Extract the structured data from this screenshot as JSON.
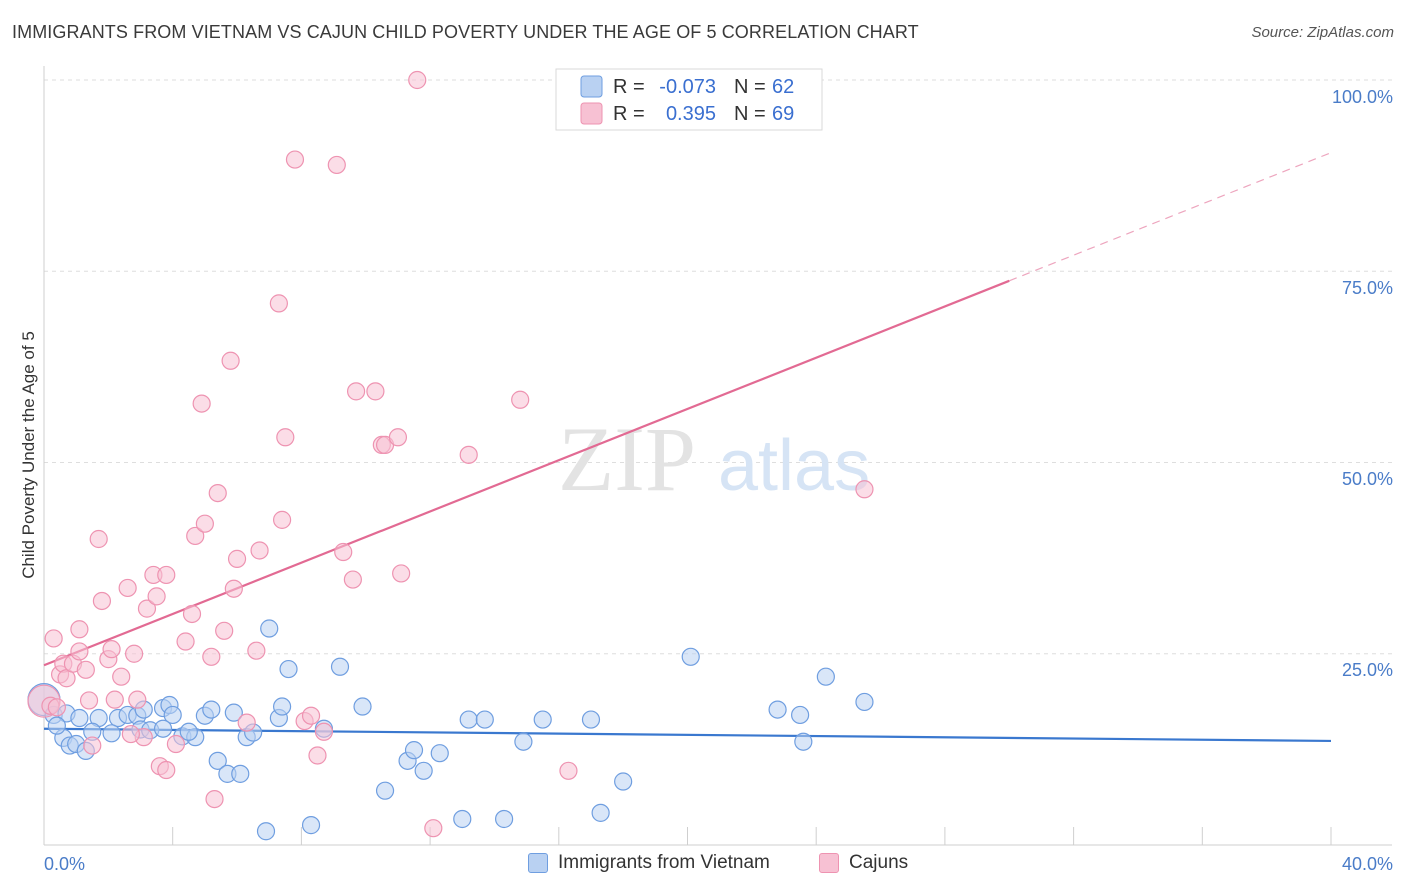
{
  "title": "IMMIGRANTS FROM VIETNAM VS CAJUN CHILD POVERTY UNDER THE AGE OF 5 CORRELATION CHART",
  "source": "Source: ZipAtlas.com",
  "watermark": {
    "zip": "ZIP",
    "atlas": "atlas"
  },
  "colors": {
    "blue_fill": "#b9d1f2",
    "blue_stroke": "#6f9ee0",
    "blue_line": "#3a78cf",
    "pink_fill": "#f7c1d3",
    "pink_stroke": "#ee93b1",
    "pink_line": "#e26a93",
    "axis_text": "#4a7cc8",
    "grid": "#dedede"
  },
  "stats_legend": [
    {
      "r_label": "R =",
      "r_value": "-0.073",
      "n_label": "N =",
      "n_value": "62"
    },
    {
      "r_label": "R =",
      "r_value": "0.395",
      "n_label": "N =",
      "n_value": "69"
    }
  ],
  "bottom_legend": [
    "Immigrants from Vietnam",
    "Cajuns"
  ],
  "chart_data": {
    "type": "scatter",
    "title": "IMMIGRANTS FROM VIETNAM VS CAJUN CHILD POVERTY UNDER THE AGE OF 5 CORRELATION CHART",
    "xlabel": "",
    "ylabel": "Child Poverty Under the Age of 5",
    "xlim": [
      0,
      40
    ],
    "ylim": [
      0,
      100
    ],
    "x_tick_labels": [
      "0.0%",
      "40.0%"
    ],
    "y_ticks": [
      25,
      50,
      75,
      100
    ],
    "y_tick_labels": [
      "25.0%",
      "50.0%",
      "75.0%",
      "100.0%"
    ],
    "grid": true,
    "series": [
      {
        "name": "Immigrants from Vietnam",
        "r": -0.073,
        "n": 62,
        "trend": {
          "x0": 0,
          "y0": 15.2,
          "x1": 40,
          "y1": 13.6,
          "solid_to_x": 40
        },
        "points": [
          [
            0.0,
            19.0
          ],
          [
            0.3,
            17.0
          ],
          [
            0.7,
            17.2
          ],
          [
            0.6,
            14.0
          ],
          [
            0.8,
            13.0
          ],
          [
            1.0,
            13.2
          ],
          [
            1.3,
            12.3
          ],
          [
            1.7,
            16.6
          ],
          [
            2.3,
            16.6
          ],
          [
            2.6,
            17.0
          ],
          [
            2.9,
            16.9
          ],
          [
            3.1,
            17.7
          ],
          [
            3.0,
            15.1
          ],
          [
            3.3,
            15.0
          ],
          [
            3.7,
            17.9
          ],
          [
            3.9,
            18.3
          ],
          [
            4.0,
            17.0
          ],
          [
            4.3,
            14.2
          ],
          [
            4.7,
            14.1
          ],
          [
            5.0,
            16.9
          ],
          [
            5.2,
            17.7
          ],
          [
            5.4,
            11.0
          ],
          [
            5.7,
            9.3
          ],
          [
            6.1,
            9.3
          ],
          [
            5.9,
            17.3
          ],
          [
            6.3,
            14.1
          ],
          [
            6.5,
            14.7
          ],
          [
            6.9,
            1.8
          ],
          [
            7.3,
            16.6
          ],
          [
            7.4,
            18.1
          ],
          [
            7.6,
            23.0
          ],
          [
            8.3,
            2.6
          ],
          [
            8.7,
            15.2
          ],
          [
            9.2,
            23.3
          ],
          [
            9.9,
            18.1
          ],
          [
            10.6,
            7.1
          ],
          [
            11.3,
            11.0
          ],
          [
            11.5,
            12.4
          ],
          [
            11.8,
            9.7
          ],
          [
            12.3,
            12.0
          ],
          [
            13.0,
            3.4
          ],
          [
            13.2,
            16.4
          ],
          [
            13.7,
            16.4
          ],
          [
            14.3,
            3.4
          ],
          [
            14.9,
            13.5
          ],
          [
            15.5,
            16.4
          ],
          [
            17.0,
            16.4
          ],
          [
            17.3,
            4.2
          ],
          [
            18.0,
            8.3
          ],
          [
            20.1,
            24.6
          ],
          [
            22.8,
            17.7
          ],
          [
            23.6,
            13.5
          ],
          [
            23.5,
            17.0
          ],
          [
            24.3,
            22.0
          ],
          [
            25.5,
            18.7
          ],
          [
            1.1,
            16.6
          ],
          [
            1.5,
            14.8
          ],
          [
            2.1,
            14.6
          ],
          [
            3.7,
            15.2
          ],
          [
            4.5,
            14.8
          ],
          [
            7.0,
            28.3
          ],
          [
            0.4,
            15.6
          ]
        ]
      },
      {
        "name": "Cajuns",
        "r": 0.395,
        "n": 69,
        "trend": {
          "x0": 0,
          "y0": 23.5,
          "x1": 40,
          "y1": 90.5,
          "solid_to_x": 30
        },
        "points": [
          [
            0.0,
            18.8
          ],
          [
            0.2,
            18.2
          ],
          [
            0.3,
            27.0
          ],
          [
            0.5,
            22.3
          ],
          [
            0.6,
            23.7
          ],
          [
            0.7,
            21.8
          ],
          [
            0.9,
            23.7
          ],
          [
            1.1,
            25.3
          ],
          [
            1.1,
            28.2
          ],
          [
            1.4,
            18.9
          ],
          [
            1.5,
            13.0
          ],
          [
            1.7,
            40.0
          ],
          [
            1.8,
            31.9
          ],
          [
            2.0,
            24.3
          ],
          [
            2.1,
            25.6
          ],
          [
            2.2,
            19.0
          ],
          [
            2.4,
            22.0
          ],
          [
            2.6,
            33.6
          ],
          [
            2.8,
            25.0
          ],
          [
            2.9,
            19.0
          ],
          [
            3.1,
            14.1
          ],
          [
            3.2,
            30.9
          ],
          [
            3.4,
            35.3
          ],
          [
            3.5,
            32.5
          ],
          [
            3.6,
            10.3
          ],
          [
            3.8,
            9.8
          ],
          [
            3.8,
            35.3
          ],
          [
            4.1,
            13.2
          ],
          [
            4.4,
            26.6
          ],
          [
            4.6,
            30.2
          ],
          [
            4.7,
            40.4
          ],
          [
            4.9,
            57.7
          ],
          [
            5.0,
            42.0
          ],
          [
            5.2,
            24.6
          ],
          [
            5.3,
            6.0
          ],
          [
            5.4,
            46.0
          ],
          [
            5.6,
            28.0
          ],
          [
            5.8,
            63.3
          ],
          [
            5.9,
            33.5
          ],
          [
            6.0,
            37.4
          ],
          [
            6.3,
            16.0
          ],
          [
            6.6,
            25.4
          ],
          [
            6.7,
            38.5
          ],
          [
            7.3,
            70.8
          ],
          [
            7.4,
            42.5
          ],
          [
            7.5,
            53.3
          ],
          [
            7.8,
            89.6
          ],
          [
            8.1,
            16.2
          ],
          [
            8.3,
            16.9
          ],
          [
            8.5,
            11.7
          ],
          [
            8.7,
            14.8
          ],
          [
            9.1,
            88.9
          ],
          [
            9.3,
            38.3
          ],
          [
            9.6,
            34.7
          ],
          [
            9.7,
            59.3
          ],
          [
            10.3,
            59.3
          ],
          [
            10.5,
            52.3
          ],
          [
            10.6,
            52.3
          ],
          [
            11.0,
            53.3
          ],
          [
            11.1,
            35.5
          ],
          [
            11.6,
            100.0
          ],
          [
            12.1,
            2.2
          ],
          [
            13.2,
            51.0
          ],
          [
            14.8,
            58.2
          ],
          [
            16.3,
            9.7
          ],
          [
            25.5,
            46.5
          ],
          [
            0.4,
            18.0
          ],
          [
            1.3,
            22.9
          ],
          [
            2.7,
            14.5
          ]
        ]
      }
    ]
  }
}
